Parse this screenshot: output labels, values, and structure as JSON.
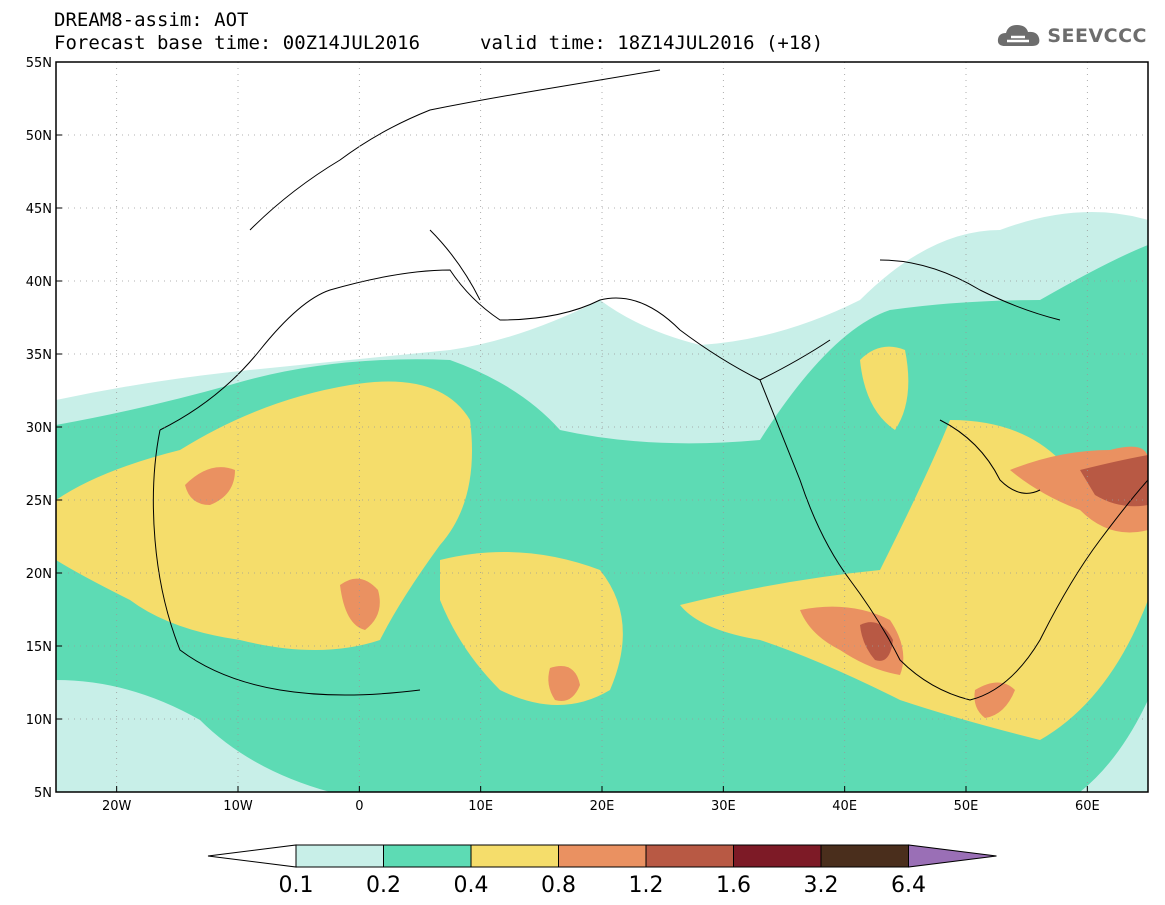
{
  "header": {
    "line1": "DREAM8-assim: AOT",
    "line2_base": "Forecast base time: 00Z14JUL2016",
    "line2_valid": "valid time: 18Z14JUL2016 (+18)"
  },
  "logo": {
    "text": "SEEVCCC",
    "icon": "cloud-icon",
    "color": "#6d6d6d"
  },
  "map": {
    "lon_range": [
      -25,
      65
    ],
    "lat_range": [
      5,
      55
    ],
    "lat_ticks": [
      "5N",
      "10N",
      "15N",
      "20N",
      "25N",
      "30N",
      "35N",
      "40N",
      "45N",
      "50N",
      "55N"
    ],
    "lon_ticks": [
      "20W",
      "10W",
      "0",
      "10E",
      "20E",
      "30E",
      "40E",
      "50E",
      "60E"
    ],
    "grid": "dotted"
  },
  "colorbar": {
    "levels": [
      "0.1",
      "0.2",
      "0.4",
      "0.8",
      "1.2",
      "1.6",
      "3.2",
      "6.4"
    ],
    "colors": [
      "#c8efe8",
      "#5ddbb4",
      "#f5dd6b",
      "#ea9161",
      "#b85944",
      "#7d1a26",
      "#4a2e1c"
    ],
    "under_color": "#ffffff",
    "over_color": "#9a6fb6"
  }
}
